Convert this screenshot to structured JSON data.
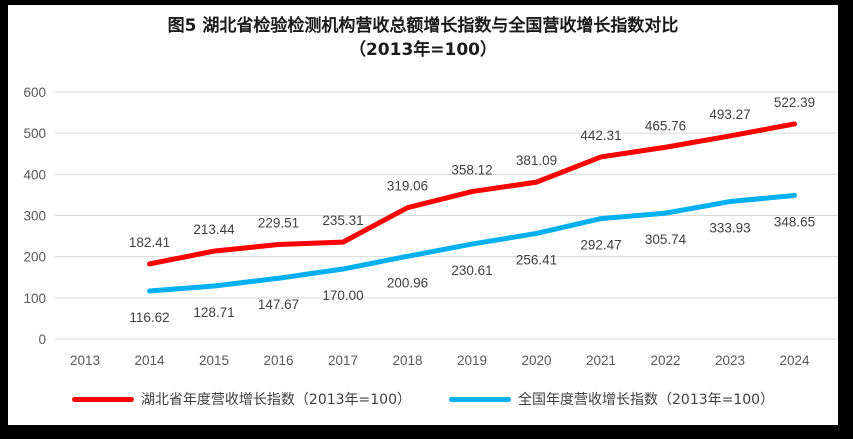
{
  "title": {
    "line1": "图5 湖北省检验检测机构营收总额增长指数与全国营收增长指数对比",
    "line2": "（2013年=100）"
  },
  "colors": {
    "hubei": "#FF0000",
    "national": "#00B0F0",
    "grid": "#D9D9D9",
    "axis_text": "#595959",
    "data_label": "#404040",
    "title_text": "#1A1A1A",
    "legend_text": "#404040",
    "background": "#FFFFFF",
    "frame": "#000000"
  },
  "chart_data": {
    "type": "line",
    "title": "图5 湖北省检验检测机构营收总额增长指数与全国营收增长指数对比（2013年=100）",
    "x": [
      2013,
      2014,
      2015,
      2016,
      2017,
      2018,
      2019,
      2020,
      2021,
      2022,
      2023,
      2024
    ],
    "xlabel": "",
    "ylabel": "",
    "ylim": [
      0,
      600
    ],
    "ytick_step": 100,
    "grid": true,
    "legend_position": "bottom",
    "series": [
      {
        "name": "湖北省年度营收增长指数（2013年=100）",
        "color_key": "hubei",
        "start_x": 2014,
        "label_position": "above",
        "values": [
          182.41,
          213.44,
          229.51,
          235.31,
          319.06,
          358.12,
          381.09,
          442.31,
          465.76,
          493.27,
          522.39
        ]
      },
      {
        "name": "全国年度营收增长指数（2013年=100）",
        "color_key": "national",
        "start_x": 2014,
        "label_position": "below",
        "values": [
          116.62,
          128.71,
          147.67,
          170.0,
          200.96,
          230.61,
          256.41,
          292.47,
          305.74,
          333.93,
          348.65
        ]
      }
    ]
  }
}
